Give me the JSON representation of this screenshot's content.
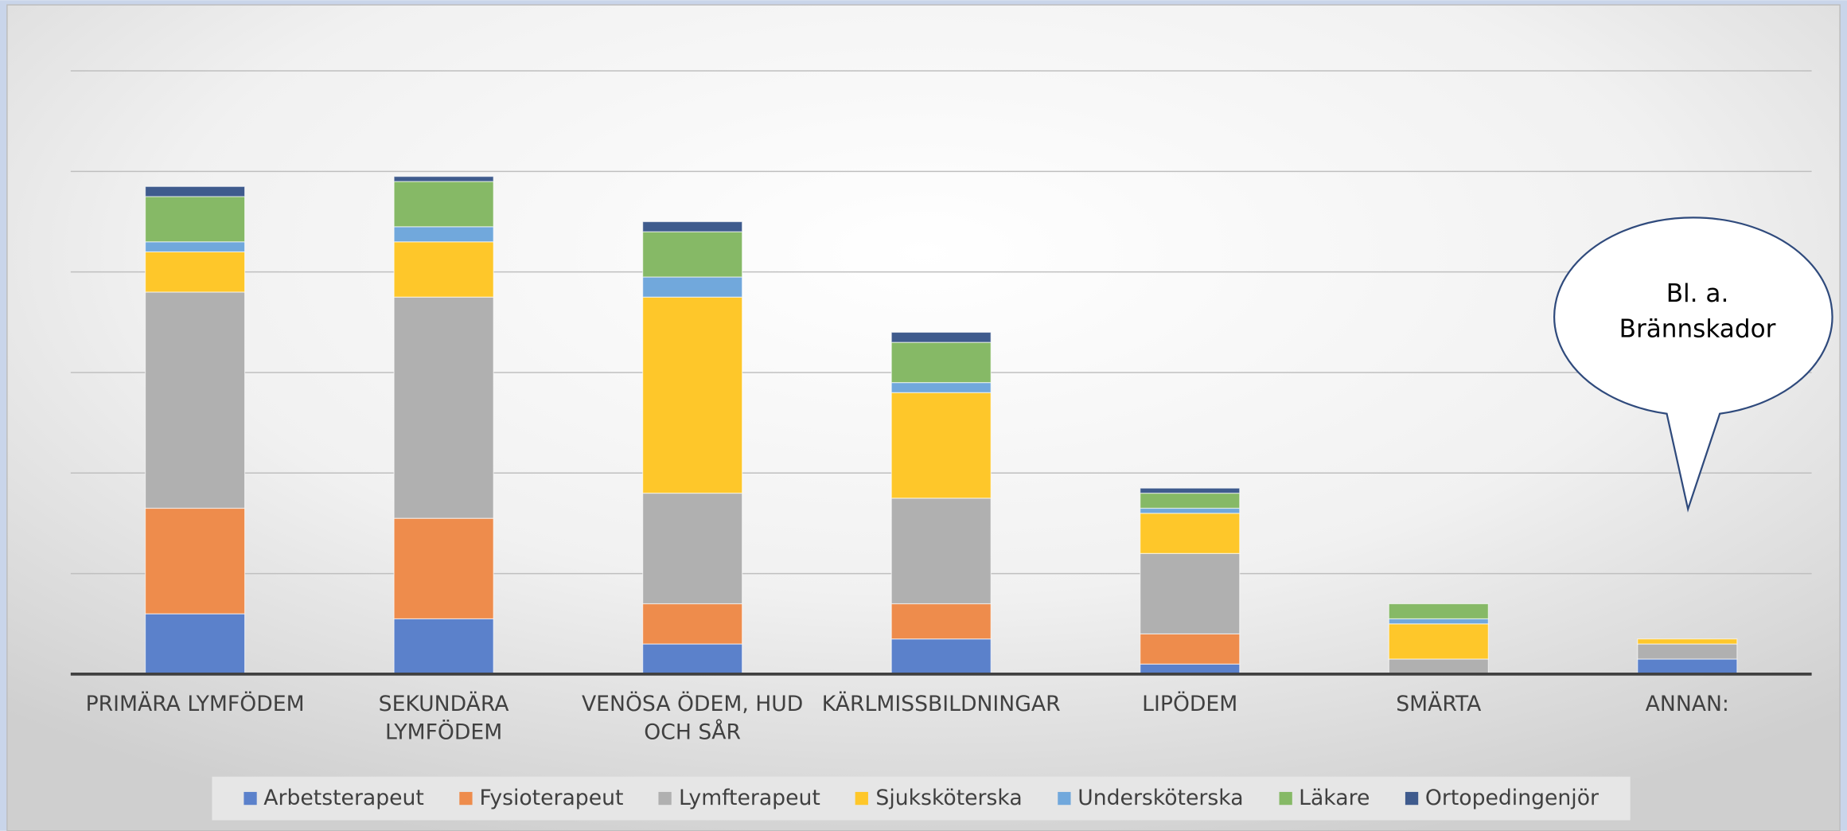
{
  "chart_data": {
    "type": "stacked_bar",
    "categories": [
      "PRIMÄRA LYMFÖDEM",
      "SEKUNDÄRA LYMFÖDEM",
      "VENÖSA ÖDEM, HUD OCH SÅR",
      "KÄRLMISSBILDNINGAR",
      "LIPÖDEM",
      "SMÄRTA",
      "ANNAN:"
    ],
    "series": [
      {
        "name": "Arbetsterapeut",
        "color": "#5b81cb",
        "values": [
          6,
          5.5,
          3,
          3.5,
          1,
          0,
          1.5
        ]
      },
      {
        "name": "Fysioterapeut",
        "color": "#ee8c4c",
        "values": [
          10.5,
          10,
          4,
          3.5,
          3,
          0,
          0
        ]
      },
      {
        "name": "Lymfterapeut",
        "color": "#b0b0b0",
        "values": [
          21.5,
          22,
          11,
          10.5,
          8,
          1.5,
          1.5
        ]
      },
      {
        "name": "Sjuksköterska",
        "color": "#fec72a",
        "values": [
          4,
          5.5,
          19.5,
          10.5,
          4,
          3.5,
          0.5
        ]
      },
      {
        "name": "Undersköterska",
        "color": "#71a8dc",
        "values": [
          1,
          1.5,
          2,
          1,
          0.5,
          0.5,
          0
        ]
      },
      {
        "name": "Läkare",
        "color": "#86b966",
        "values": [
          4.5,
          4.5,
          4.5,
          4,
          1.5,
          1.5,
          0
        ]
      },
      {
        "name": "Ortopedingenjör",
        "color": "#3f5b8d",
        "values": [
          1,
          0.5,
          1,
          1,
          0.5,
          0,
          0
        ]
      }
    ],
    "ylim": [
      0,
      60
    ],
    "yticks": [
      0,
      10,
      20,
      30,
      40,
      50,
      60
    ],
    "grid": true,
    "legend": "bottom",
    "annotation": [
      "Bl. a.",
      "Brännskador"
    ]
  }
}
